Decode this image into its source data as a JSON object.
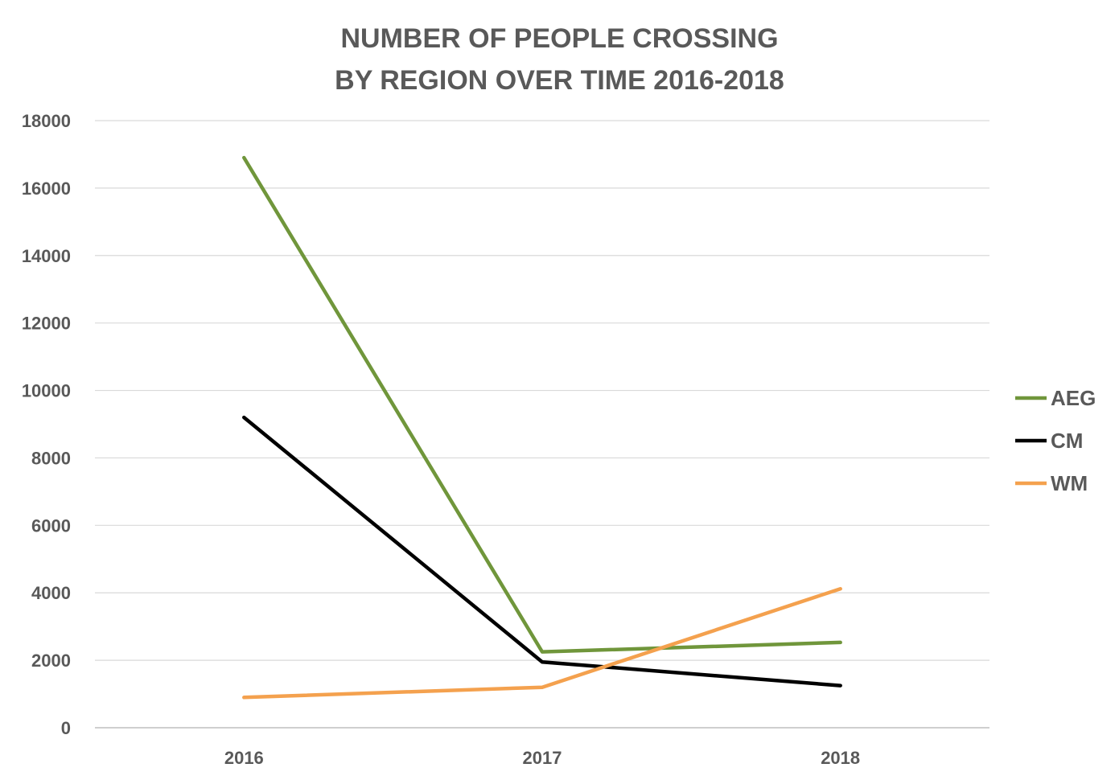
{
  "chart_data": {
    "type": "line",
    "title": "NUMBER OF PEOPLE CROSSING",
    "subtitle": "BY REGION OVER TIME 2016-2018",
    "categories": [
      "2016",
      "2017",
      "2018"
    ],
    "series": [
      {
        "name": "AEG",
        "values": [
          16900,
          2250,
          2530
        ],
        "color": "#70963b"
      },
      {
        "name": "CM",
        "values": [
          9200,
          1950,
          1250
        ],
        "color": "#000000"
      },
      {
        "name": "WM",
        "values": [
          900,
          1200,
          4120
        ],
        "color": "#f4a14e"
      }
    ],
    "ylim": [
      0,
      18000
    ],
    "yticks": [
      "0",
      "2000",
      "4000",
      "6000",
      "8000",
      "10000",
      "12000",
      "14000",
      "16000",
      "18000"
    ],
    "grid": true,
    "legend": "right",
    "xlabel": "",
    "ylabel": ""
  }
}
